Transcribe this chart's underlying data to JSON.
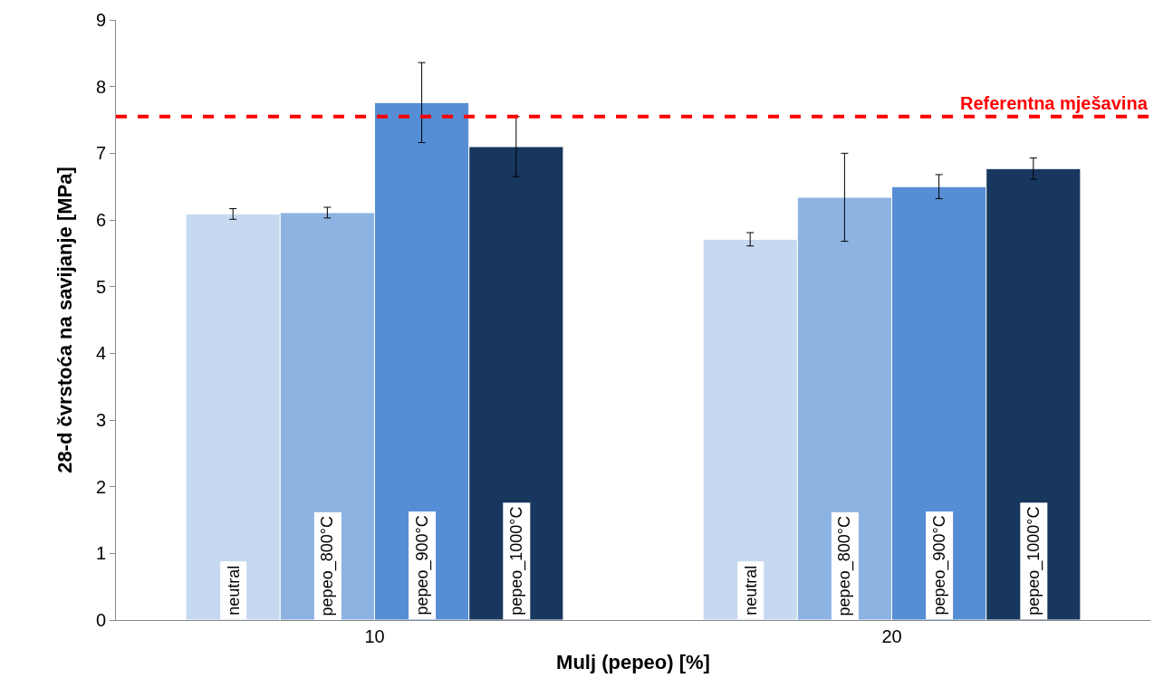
{
  "chart_data": {
    "type": "bar",
    "xlabel": "Mulj (pepeo) [%]",
    "ylabel": "28-d čvrstoća na savijanje [MPa]",
    "categories": [
      "10",
      "20"
    ],
    "ylim": [
      0,
      9
    ],
    "yticks": [
      0,
      1,
      2,
      3,
      4,
      5,
      6,
      7,
      8,
      9
    ],
    "grid": false,
    "legend": false,
    "series": [
      {
        "name": "neutral",
        "color": "#c6d9f0",
        "values": [
          6.09,
          5.71
        ],
        "errors": [
          0.08,
          0.1
        ]
      },
      {
        "name": "pepeo_800°C",
        "color": "#8db3e2",
        "values": [
          6.11,
          6.34
        ],
        "errors": [
          0.08,
          0.66
        ]
      },
      {
        "name": "pepeo_900°C",
        "color": "#558ed5",
        "values": [
          7.76,
          6.5
        ],
        "errors": [
          0.6,
          0.18
        ]
      },
      {
        "name": "pepeo_1000°C",
        "color": "#17375e",
        "values": [
          7.1,
          6.77
        ],
        "errors": [
          0.45,
          0.16
        ]
      }
    ],
    "ref_lines": [
      {
        "axis": "y",
        "value": 7.55,
        "label": "Referentna mješavina",
        "color": "#ff0000",
        "line_style": "dashed"
      }
    ]
  }
}
